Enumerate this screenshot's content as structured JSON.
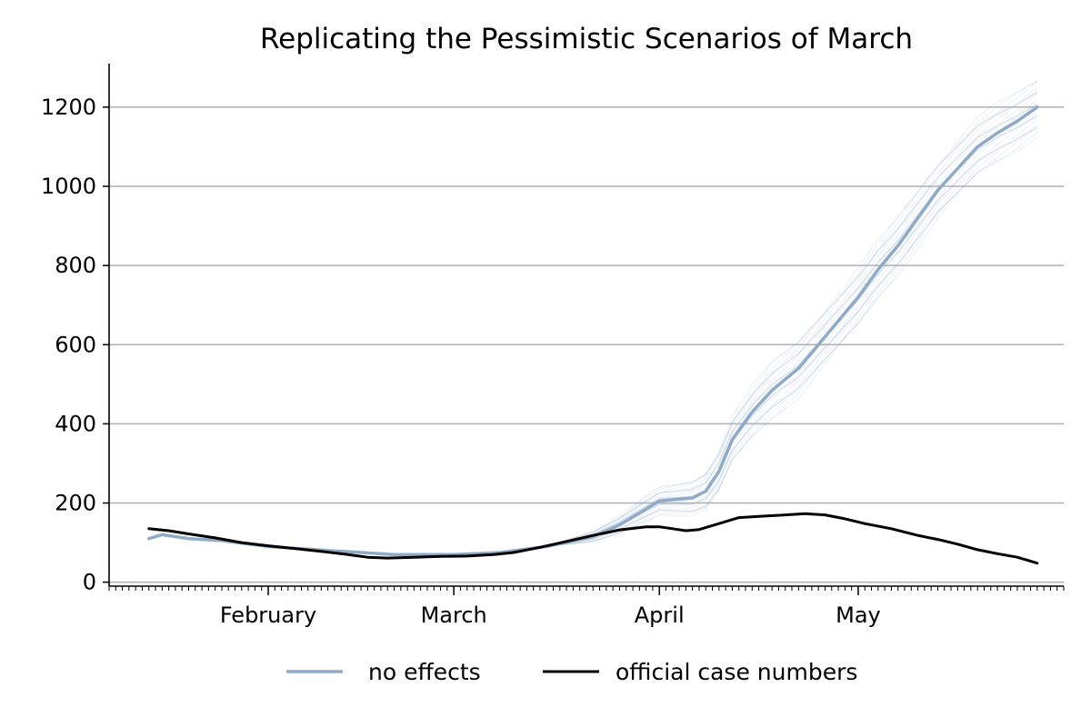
{
  "chart_data": {
    "type": "line",
    "title": "Replicating the Pessimistic Scenarios of March",
    "xlabel": "",
    "ylabel": "",
    "ylim": [
      -10,
      1310
    ],
    "xlim": [
      "2021-01-08",
      "2021-06-01"
    ],
    "grid": "horizontal",
    "legend_position": "bottom",
    "yticks": [
      0,
      200,
      400,
      600,
      800,
      1000,
      1200
    ],
    "xticks": [
      {
        "date": "2021-02-01",
        "label": "February"
      },
      {
        "date": "2021-03-01",
        "label": "March"
      },
      {
        "date": "2021-04-01",
        "label": "April"
      },
      {
        "date": "2021-05-01",
        "label": "May"
      }
    ],
    "series": [
      {
        "name": "no effects",
        "color": "#8faac8",
        "points": [
          [
            "2021-01-14",
            110
          ],
          [
            "2021-01-16",
            120
          ],
          [
            "2021-01-20",
            110
          ],
          [
            "2021-01-25",
            105
          ],
          [
            "2021-02-01",
            90
          ],
          [
            "2021-02-10",
            80
          ],
          [
            "2021-02-20",
            70
          ],
          [
            "2021-03-01",
            70
          ],
          [
            "2021-03-08",
            75
          ],
          [
            "2021-03-15",
            90
          ],
          [
            "2021-03-22",
            115
          ],
          [
            "2021-03-26",
            145
          ],
          [
            "2021-03-30",
            185
          ],
          [
            "2021-04-01",
            205
          ],
          [
            "2021-04-06",
            213
          ],
          [
            "2021-04-08",
            230
          ],
          [
            "2021-04-10",
            280
          ],
          [
            "2021-04-12",
            360
          ],
          [
            "2021-04-15",
            430
          ],
          [
            "2021-04-18",
            485
          ],
          [
            "2021-04-22",
            540
          ],
          [
            "2021-04-25",
            600
          ],
          [
            "2021-04-28",
            660
          ],
          [
            "2021-05-01",
            720
          ],
          [
            "2021-05-04",
            790
          ],
          [
            "2021-05-07",
            850
          ],
          [
            "2021-05-10",
            920
          ],
          [
            "2021-05-13",
            990
          ],
          [
            "2021-05-16",
            1045
          ],
          [
            "2021-05-19",
            1100
          ],
          [
            "2021-05-22",
            1135
          ],
          [
            "2021-05-25",
            1165
          ],
          [
            "2021-05-28",
            1200
          ]
        ]
      },
      {
        "name": "official case numbers",
        "color": "#000000",
        "points": [
          [
            "2021-01-14",
            135
          ],
          [
            "2021-01-17",
            130
          ],
          [
            "2021-01-20",
            122
          ],
          [
            "2021-01-24",
            112
          ],
          [
            "2021-01-28",
            100
          ],
          [
            "2021-02-01",
            92
          ],
          [
            "2021-02-05",
            85
          ],
          [
            "2021-02-09",
            78
          ],
          [
            "2021-02-13",
            70
          ],
          [
            "2021-02-16",
            63
          ],
          [
            "2021-02-19",
            61
          ],
          [
            "2021-02-23",
            63
          ],
          [
            "2021-02-27",
            65
          ],
          [
            "2021-03-03",
            66
          ],
          [
            "2021-03-07",
            70
          ],
          [
            "2021-03-10",
            75
          ],
          [
            "2021-03-14",
            88
          ],
          [
            "2021-03-18",
            103
          ],
          [
            "2021-03-22",
            118
          ],
          [
            "2021-03-26",
            132
          ],
          [
            "2021-03-30",
            140
          ],
          [
            "2021-04-01",
            140
          ],
          [
            "2021-04-03",
            135
          ],
          [
            "2021-04-05",
            130
          ],
          [
            "2021-04-07",
            133
          ],
          [
            "2021-04-10",
            148
          ],
          [
            "2021-04-13",
            163
          ],
          [
            "2021-04-16",
            166
          ],
          [
            "2021-04-20",
            170
          ],
          [
            "2021-04-23",
            173
          ],
          [
            "2021-04-26",
            170
          ],
          [
            "2021-04-29",
            160
          ],
          [
            "2021-05-02",
            148
          ],
          [
            "2021-05-06",
            135
          ],
          [
            "2021-05-10",
            118
          ],
          [
            "2021-05-13",
            108
          ],
          [
            "2021-05-16",
            96
          ],
          [
            "2021-05-19",
            82
          ],
          [
            "2021-05-22",
            72
          ],
          [
            "2021-05-25",
            63
          ],
          [
            "2021-05-28",
            48
          ]
        ]
      }
    ],
    "scenario_band": {
      "description_color": "#8faac8",
      "runs": 24,
      "spread_max": 70
    }
  }
}
